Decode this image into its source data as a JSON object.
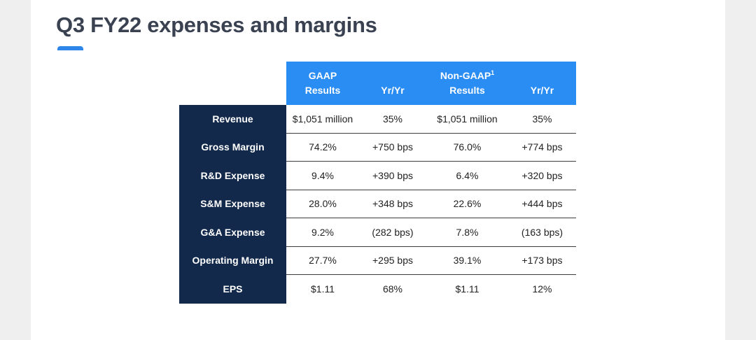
{
  "title": "Q3 FY22 expenses and margins",
  "colors": {
    "accent": "#2a8df3",
    "label_band": "#12294b",
    "title_text": "#3a4252"
  },
  "headers": {
    "gaap_line1": "GAAP",
    "gaap_line2": "Results",
    "gaap_yoy": "Yr/Yr",
    "nongaap_line1": "Non-GAAP",
    "nongaap_footnote": "1",
    "nongaap_line2": "Results",
    "nongaap_yoy": "Yr/Yr"
  },
  "rows": [
    {
      "label": "Revenue",
      "gaap": "$1,051 million",
      "gaap_yoy": "35%",
      "nongaap": "$1,051 million",
      "nongaap_yoy": "35%"
    },
    {
      "label": "Gross Margin",
      "gaap": "74.2%",
      "gaap_yoy": "+750 bps",
      "nongaap": "76.0%",
      "nongaap_yoy": "+774 bps"
    },
    {
      "label": "R&D Expense",
      "gaap": "9.4%",
      "gaap_yoy": "+390 bps",
      "nongaap": "6.4%",
      "nongaap_yoy": "+320 bps"
    },
    {
      "label": "S&M Expense",
      "gaap": "28.0%",
      "gaap_yoy": "+348 bps",
      "nongaap": "22.6%",
      "nongaap_yoy": "+444 bps"
    },
    {
      "label": "G&A Expense",
      "gaap": "9.2%",
      "gaap_yoy": "(282 bps)",
      "nongaap": "7.8%",
      "nongaap_yoy": "(163 bps)"
    },
    {
      "label": "Operating Margin",
      "gaap": "27.7%",
      "gaap_yoy": "+295 bps",
      "nongaap": "39.1%",
      "nongaap_yoy": "+173 bps"
    },
    {
      "label": "EPS",
      "gaap": "$1.11",
      "gaap_yoy": "68%",
      "nongaap": "$1.11",
      "nongaap_yoy": "12%"
    }
  ]
}
